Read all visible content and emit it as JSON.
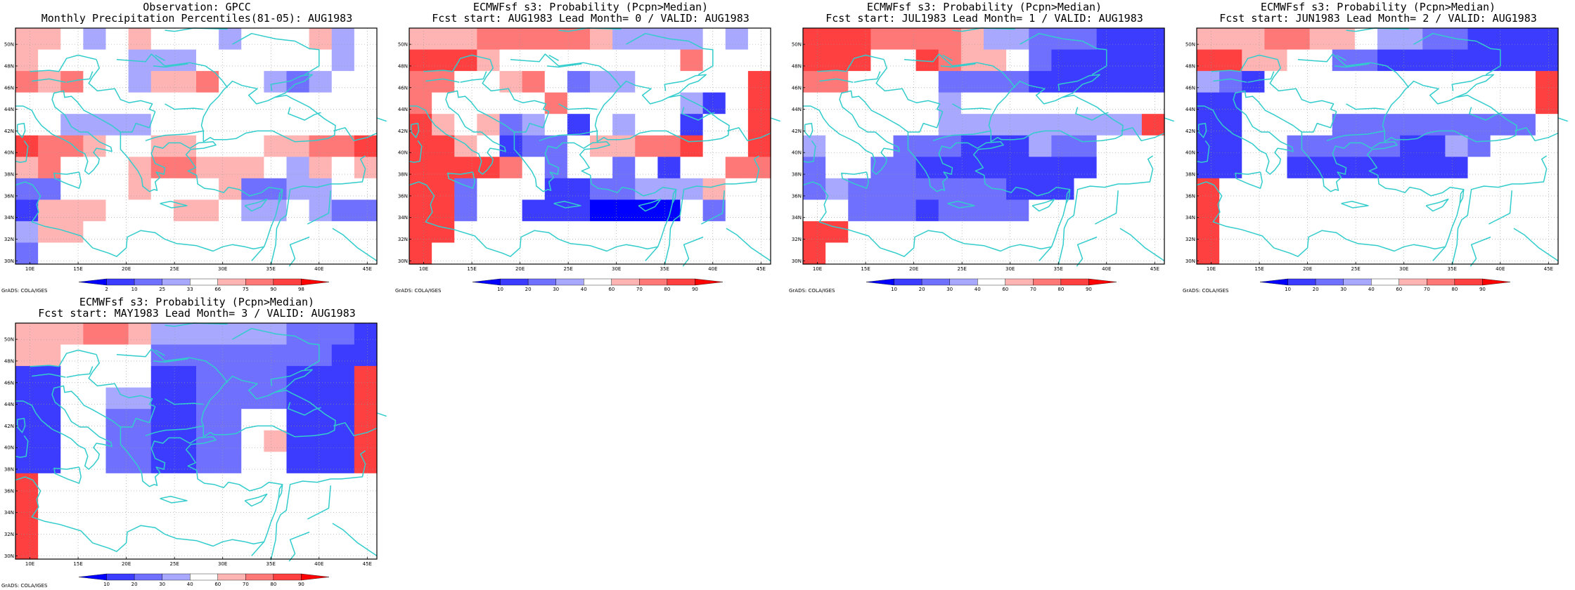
{
  "lat_labels": [
    "30N",
    "32N",
    "34N",
    "36N",
    "38N",
    "40N",
    "42N",
    "44N",
    "46N",
    "48N",
    "50N"
  ],
  "lon_labels": [
    "10E",
    "15E",
    "20E",
    "25E",
    "30E",
    "35E",
    "40E",
    "45E"
  ],
  "credit": "GrADS: COLA/IGES",
  "colors": {
    "coast": "#33cccc",
    "frame": "#000000",
    "classes": [
      "#0000ff",
      "#3c3cff",
      "#7070ff",
      "#a8a8ff",
      "#ffffff",
      "#ffb4b4",
      "#ff7878",
      "#ff4040",
      "#ff0000"
    ]
  },
  "panels": [
    {
      "title1": "Observation: GPCC",
      "title2": "Monthly Precipitation Percentiles(81-05): AUG1983",
      "legend_ticks": [
        "2",
        "10",
        "25",
        "33",
        "66",
        "75",
        "90",
        "98"
      ],
      "grid": [
        "5543454443444534",
        "5444433344444434",
        "6564435564432344",
        "4444444444444444",
        "4433334444444444",
        "7665445544455667",
        "5644456655543545",
        "2244454445223344",
        "1555444554334322",
        "3554444444444444",
        "2444444444444444"
      ]
    },
    {
      "title1": "ECMWFsf s3: Probability (Pcpn>Median)",
      "title2": "Fcst start: AUG1983  Lead Month= 0 / VALID: AUG1983",
      "legend_ticks": [
        "10",
        "20",
        "30",
        "40",
        "60",
        "70",
        "80",
        "90"
      ],
      "grid": [
        "5556666653333434",
        "7775444444446444",
        "6644564233444447",
        "6444446444443147",
        "7545234143441447",
        "7754122455667447",
        "7777642442414466",
        "7724441122333544",
        "7724411100004244",
        "7744444444444444",
        "7444444444444444"
      ]
    },
    {
      "title1": "ECMWFsf s3: Probability (Pcpn>Median)",
      "title2": "Fcst start: JUL1983  Lead Month= 1 / VALID: AUG1983",
      "legend_ticks": [
        "10",
        "20",
        "30",
        "40",
        "60",
        "70",
        "80",
        "90"
      ],
      "grid": [
        "7776666533222111",
        "7774476554211111",
        "6644442222111111",
        "4444443444444444",
        "4444443333333337",
        "3444222111322444",
        "2442211111111444",
        "2322222221114444",
        "4422212222444444",
        "7744444444444444",
        "7444444444444444"
      ]
    },
    {
      "title1": "ECMWFsf s3: Probability (Pcpn>Median)",
      "title2": "Fcst start: JUN1983  Lead Month= 2 / VALID: AUG1983",
      "legend_ticks": [
        "10",
        "20",
        "30",
        "40",
        "60",
        "70",
        "80",
        "90"
      ],
      "grid": [
        "5556655433221111",
        "7755442211111111",
        "3214444444444447",
        "1144444444444447",
        "1144442222222224",
        "1144222221132444",
        "1144111111114444",
        "7444444444444444",
        "7444444444444444",
        "7444444444444444",
        "7444444444444444"
      ]
    },
    {
      "title1": "ECMWFsf s3: Probability (Pcpn>Median)",
      "title2": "Fcst start: MAY1983  Lead Month= 3 / VALID: AUG1983",
      "legend_ticks": [
        "10",
        "20",
        "30",
        "40",
        "60",
        "70",
        "80",
        "90"
      ],
      "grid": [
        "5556653333332221",
        "5544442222222211",
        "1144441122221117",
        "1144331122221117",
        "1144221122441117",
        "1144221122451117",
        "1144221122441117",
        "7444444444444444",
        "7444444444444444",
        "7444444444444444",
        "7444444444444444"
      ]
    }
  ]
}
